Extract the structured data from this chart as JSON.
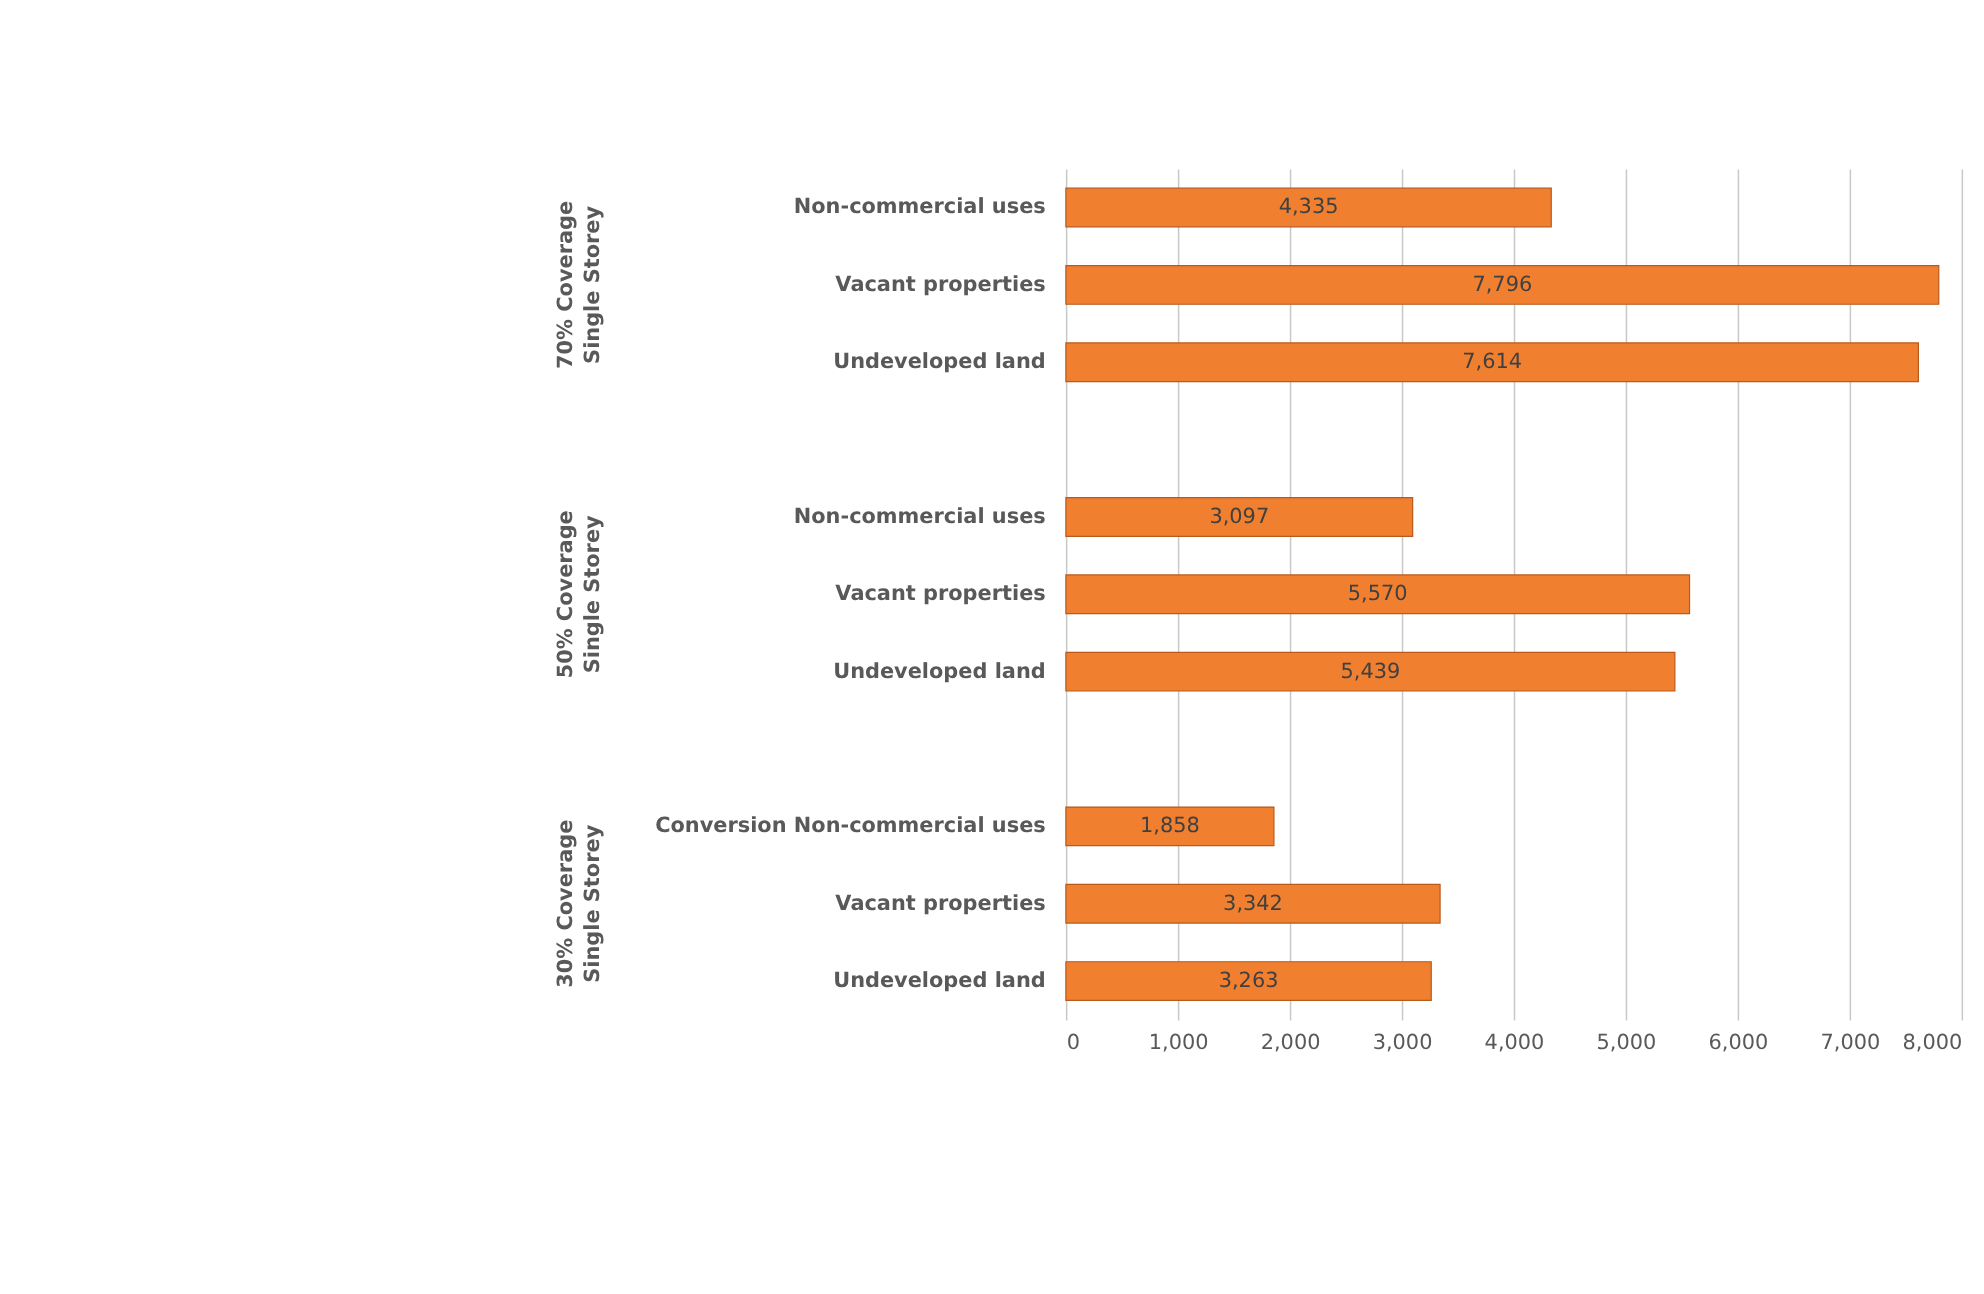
{
  "chart_data": {
    "type": "bar",
    "orientation": "horizontal",
    "categories": [
      "Non-commercial uses",
      "Vacant properties",
      "Undeveloped land",
      null,
      "Non-commercial uses",
      "Vacant properties",
      "Undeveloped land",
      null,
      "Conversion Non-commercial uses",
      "Vacant properties",
      "Undeveloped land"
    ],
    "values": [
      4335,
      7796,
      7614,
      null,
      3097,
      5570,
      5439,
      null,
      1858,
      3342,
      3263
    ],
    "color": "#f07f2f",
    "value_labels": [
      "4,335",
      "7,796",
      "7,614",
      null,
      "3,097",
      "5,570",
      "5,439",
      null,
      "1,858",
      "3,342",
      "3,263"
    ],
    "annotations": [
      "70% Coverage Single Storey",
      "50% Coverage Single Storey",
      "30% Coverage Single Storey"
    ],
    "xlim": [
      0,
      8000
    ],
    "xticks": [
      {
        "value": 0,
        "label": "0"
      },
      {
        "value": 1000,
        "label": "1,000"
      },
      {
        "value": 2000,
        "label": "2,000"
      },
      {
        "value": 3000,
        "label": "3,000"
      },
      {
        "value": 4000,
        "label": "4,000"
      },
      {
        "value": 5000,
        "label": "5,000"
      },
      {
        "value": 6000,
        "label": "6,000"
      },
      {
        "value": 7000,
        "label": "7,000"
      },
      {
        "value": 8000,
        "label": "8,000"
      }
    ],
    "grid": "x"
  }
}
